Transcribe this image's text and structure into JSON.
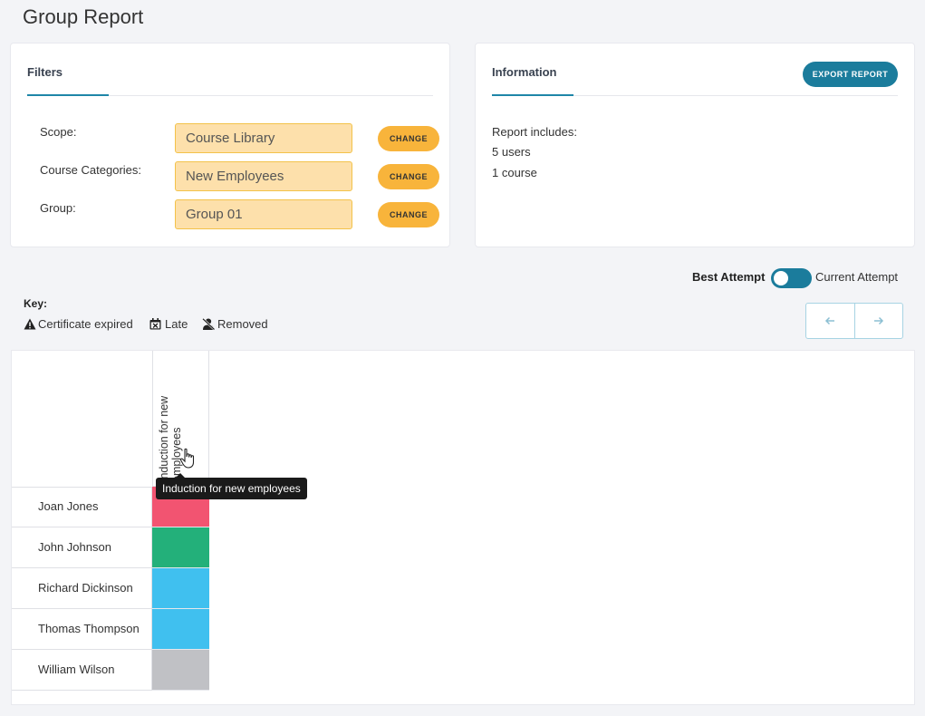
{
  "page": {
    "title": "Group Report"
  },
  "filters": {
    "title": "Filters",
    "rows": [
      {
        "label": "Scope:",
        "value": "Course Library",
        "button": "CHANGE"
      },
      {
        "label": "Course Categories:",
        "value": "New Employees",
        "button": "CHANGE"
      },
      {
        "label": "Group:",
        "value": "Group 01",
        "button": "CHANGE"
      }
    ]
  },
  "information": {
    "title": "Information",
    "export_label": "EXPORT REPORT",
    "lines": [
      "Report includes:",
      "5 users",
      "1 course"
    ]
  },
  "attempt_toggle": {
    "left_label": "Best Attempt",
    "right_label": "Current Attempt",
    "state": "best"
  },
  "key": {
    "title": "Key:",
    "items": [
      {
        "icon": "warning-icon",
        "label": "Certificate expired"
      },
      {
        "icon": "calendar-late-icon",
        "label": "Late"
      },
      {
        "icon": "user-removed-icon",
        "label": "Removed"
      }
    ]
  },
  "pager": {
    "prev_icon": "arrow-left-icon",
    "next_icon": "arrow-right-icon"
  },
  "grid": {
    "courses": [
      {
        "name": "Induction for new employees"
      }
    ],
    "users": [
      {
        "name": "Joan Jones",
        "status_color": "#f25471"
      },
      {
        "name": "John Johnson",
        "status_color": "#23b07a"
      },
      {
        "name": "Richard Dickinson",
        "status_color": "#40c0ef"
      },
      {
        "name": "Thomas Thompson",
        "status_color": "#40c0ef"
      },
      {
        "name": "William Wilson",
        "status_color": "#c0c1c5"
      }
    ]
  },
  "tooltip": {
    "text": "Induction for new employees"
  },
  "colors": {
    "accent": "#1b7c9c",
    "button_yellow": "#f8b43b",
    "field_bg": "#fde0ab"
  }
}
